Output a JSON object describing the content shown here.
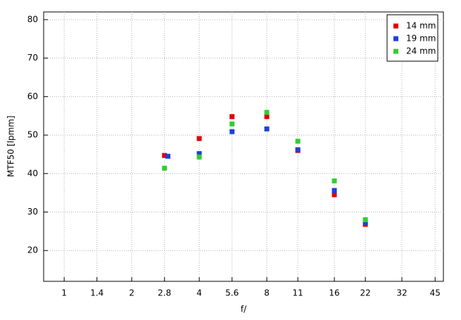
{
  "chart_data": {
    "type": "scatter",
    "x_label": "f/",
    "y_label": "MTF50 [lpmm]",
    "x_scale": "log",
    "grid": true,
    "legend_position": "upper right",
    "xlim": [
      0.81,
      49
    ],
    "xticks": [
      1,
      1.4,
      2,
      2.8,
      4,
      5.6,
      8,
      11,
      16,
      22,
      32,
      45
    ],
    "ylim": [
      12,
      82
    ],
    "yticks": [
      20,
      30,
      40,
      50,
      60,
      70,
      80
    ],
    "series": [
      {
        "name": "14 mm",
        "color": "#e00000",
        "x": [
          2.8,
          4,
          5.6,
          8,
          11,
          16,
          22
        ],
        "values": [
          44.7,
          49.1,
          54.8,
          54.8,
          46.0,
          34.5,
          26.8
        ]
      },
      {
        "name": "19 mm",
        "color": "#1f3fdf",
        "x": [
          2.9,
          4,
          5.6,
          8,
          11,
          16,
          22
        ],
        "values": [
          44.5,
          45.2,
          50.9,
          51.6,
          46.2,
          35.6,
          27.3
        ]
      },
      {
        "name": "24 mm",
        "color": "#33cc33",
        "x": [
          2.8,
          4,
          5.6,
          8,
          11,
          16,
          22
        ],
        "values": [
          41.4,
          44.3,
          52.9,
          55.9,
          48.4,
          38.1,
          28.0
        ]
      }
    ]
  }
}
